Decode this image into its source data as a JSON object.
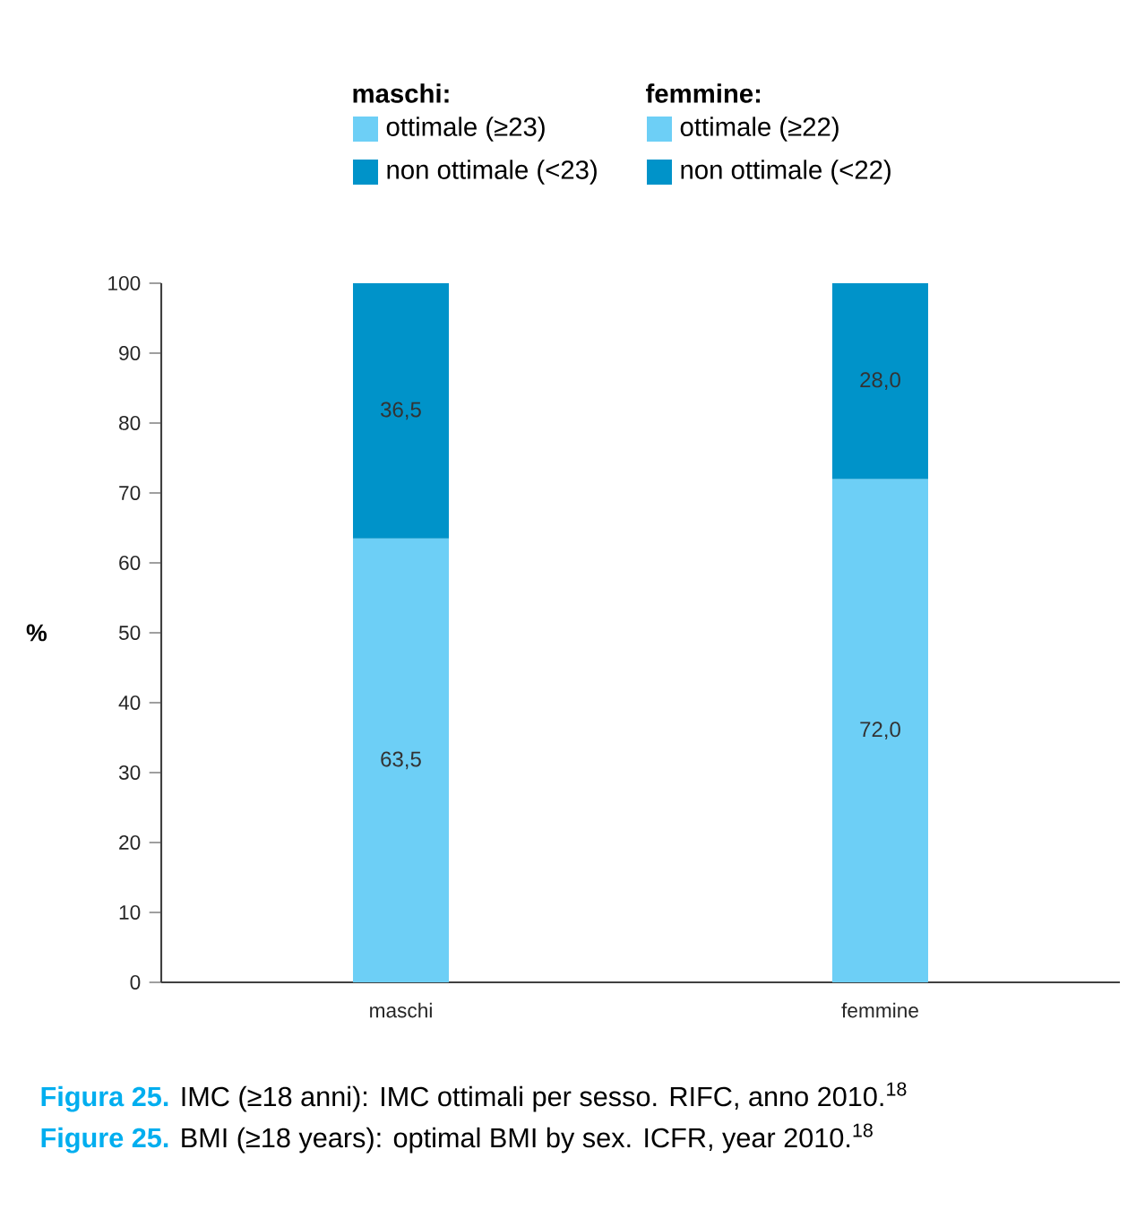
{
  "chart_data": {
    "type": "bar",
    "categories": [
      "maschi",
      "femmine"
    ],
    "stacked": true,
    "ylabel": "%",
    "ylim": [
      0,
      100
    ],
    "yticks": [
      0,
      10,
      20,
      30,
      40,
      50,
      60,
      70,
      80,
      90,
      100
    ],
    "legend": "top",
    "series": [
      {
        "name": "ottimale (≥23)",
        "color": "#6dcff6",
        "values": [
          63.5,
          null
        ],
        "value_labels": [
          "63,5",
          null
        ]
      },
      {
        "name": "non ottimale (<23)",
        "color": "#0093c9",
        "values": [
          36.5,
          null
        ],
        "value_labels": [
          "36,5",
          null
        ]
      },
      {
        "name": "ottimale (≥22)",
        "color": "#6dcff6",
        "values": [
          null,
          72.0
        ],
        "value_labels": [
          null,
          "72,0"
        ]
      },
      {
        "name": "non ottimale (<22)",
        "color": "#0093c9",
        "values": [
          null,
          28.0
        ],
        "value_labels": [
          null,
          "28,0"
        ]
      }
    ],
    "annotations": [
      "maschi:",
      "femmine:",
      "**Figura 25.** IMC (≥18 anni): IMC ottimali per sesso. RIFC, anno 2010.$^{18}$",
      "**Figure 25.** BMI (≥18 years): optimal BMI by sex. ICFR, year 2010.$^{18}$"
    ]
  }
}
